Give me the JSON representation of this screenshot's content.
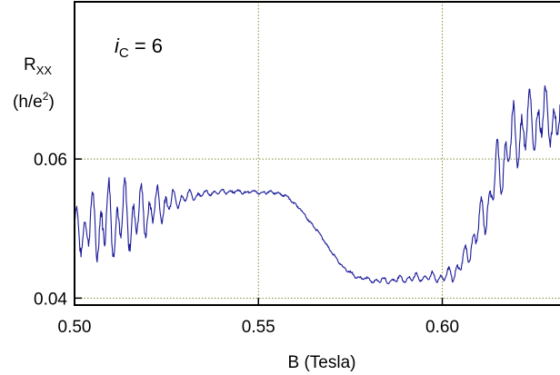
{
  "chart_data": {
    "type": "line",
    "title": "",
    "xlabel": "B (Tesla)",
    "ylabel": {
      "symbol": "R",
      "subscript": "XX",
      "unit_open": "(h/e",
      "unit_power": "2",
      "unit_close": ")"
    },
    "annotation": {
      "symbol": "i",
      "subscript": "C",
      "text": " = 6"
    },
    "xlim": [
      0.5,
      0.632
    ],
    "ylim": [
      0.039,
      0.0826
    ],
    "x_ticks": [
      {
        "value": 0.5,
        "label": "0.50"
      },
      {
        "value": 0.55,
        "label": "0.55"
      },
      {
        "value": 0.6,
        "label": "0.60"
      }
    ],
    "y_ticks": [
      {
        "value": 0.04,
        "label": "0.04"
      },
      {
        "value": 0.06,
        "label": "0.06"
      }
    ],
    "grid": {
      "x": [
        0.55,
        0.6
      ],
      "y": [
        0.04,
        0.06
      ],
      "style": "dotted",
      "color": "#8a8a3a"
    },
    "series": [
      {
        "color": "#1a1a9a",
        "envelope": {
          "x": [
            0.5,
            0.503,
            0.506,
            0.509,
            0.512,
            0.515,
            0.518,
            0.521,
            0.524,
            0.527,
            0.53,
            0.535,
            0.54,
            0.545,
            0.55,
            0.555,
            0.558,
            0.561,
            0.564,
            0.567,
            0.57,
            0.573,
            0.576,
            0.58,
            0.585,
            0.59,
            0.595,
            0.6,
            0.603,
            0.606,
            0.609,
            0.612,
            0.615,
            0.618,
            0.621,
            0.624,
            0.627,
            0.63,
            0.632
          ],
          "center": [
            0.0495,
            0.05,
            0.0505,
            0.051,
            0.0512,
            0.0515,
            0.052,
            0.0527,
            0.0534,
            0.054,
            0.0545,
            0.055,
            0.0553,
            0.0553,
            0.0552,
            0.0552,
            0.0545,
            0.053,
            0.051,
            0.049,
            0.0465,
            0.0445,
            0.0432,
            0.0426,
            0.0425,
            0.0428,
            0.043,
            0.043,
            0.0435,
            0.0455,
            0.049,
            0.053,
            0.058,
            0.0615,
            0.064,
            0.065,
            0.066,
            0.0658,
            0.0655
          ],
          "amplitude": [
            0.004,
            0.005,
            0.0065,
            0.007,
            0.007,
            0.006,
            0.005,
            0.004,
            0.003,
            0.002,
            0.0012,
            0.0005,
            0.0004,
            0.0003,
            0.0003,
            0.0003,
            0.0002,
            0.0002,
            0.0002,
            0.0002,
            0.0002,
            0.0002,
            0.0003,
            0.0004,
            0.0005,
            0.0007,
            0.0008,
            0.001,
            0.0015,
            0.002,
            0.003,
            0.0045,
            0.0055,
            0.006,
            0.0065,
            0.006,
            0.0055,
            0.005,
            0.005
          ]
        },
        "oscillation_period_tesla": 0.0022,
        "sample_count": 900
      }
    ]
  }
}
